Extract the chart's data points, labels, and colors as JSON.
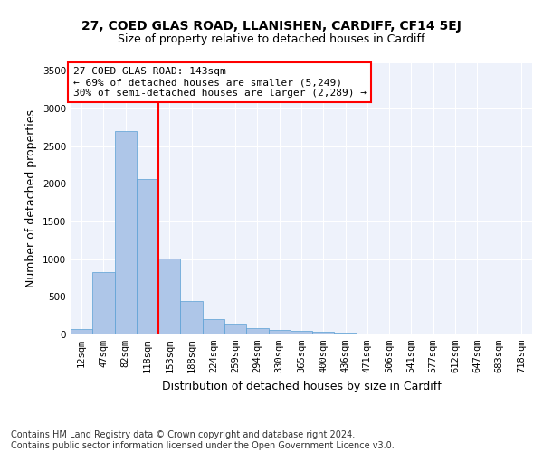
{
  "title_line1": "27, COED GLAS ROAD, LLANISHEN, CARDIFF, CF14 5EJ",
  "title_line2": "Size of property relative to detached houses in Cardiff",
  "xlabel": "Distribution of detached houses by size in Cardiff",
  "ylabel": "Number of detached properties",
  "bar_color": "#aec6e8",
  "bar_edge_color": "#5a9fd4",
  "categories": [
    "12sqm",
    "47sqm",
    "82sqm",
    "118sqm",
    "153sqm",
    "188sqm",
    "224sqm",
    "259sqm",
    "294sqm",
    "330sqm",
    "365sqm",
    "400sqm",
    "436sqm",
    "471sqm",
    "506sqm",
    "541sqm",
    "577sqm",
    "612sqm",
    "647sqm",
    "683sqm",
    "718sqm"
  ],
  "values": [
    75,
    830,
    2700,
    2060,
    1010,
    450,
    210,
    140,
    80,
    60,
    45,
    35,
    25,
    15,
    10,
    8,
    5,
    4,
    3,
    2,
    2
  ],
  "ylim": [
    0,
    3600
  ],
  "yticks": [
    0,
    500,
    1000,
    1500,
    2000,
    2500,
    3000,
    3500
  ],
  "annotation_text_line1": "27 COED GLAS ROAD: 143sqm",
  "annotation_text_line2": "← 69% of detached houses are smaller (5,249)",
  "annotation_text_line3": "30% of semi-detached houses are larger (2,289) →",
  "annotation_box_edge_color": "red",
  "vline_color": "red",
  "vline_x": 3.5,
  "footer_line1": "Contains HM Land Registry data © Crown copyright and database right 2024.",
  "footer_line2": "Contains public sector information licensed under the Open Government Licence v3.0.",
  "bg_color": "#eef2fb",
  "title_fontsize": 10,
  "subtitle_fontsize": 9,
  "axis_label_fontsize": 9,
  "tick_fontsize": 7.5,
  "annotation_fontsize": 8,
  "footer_fontsize": 7
}
